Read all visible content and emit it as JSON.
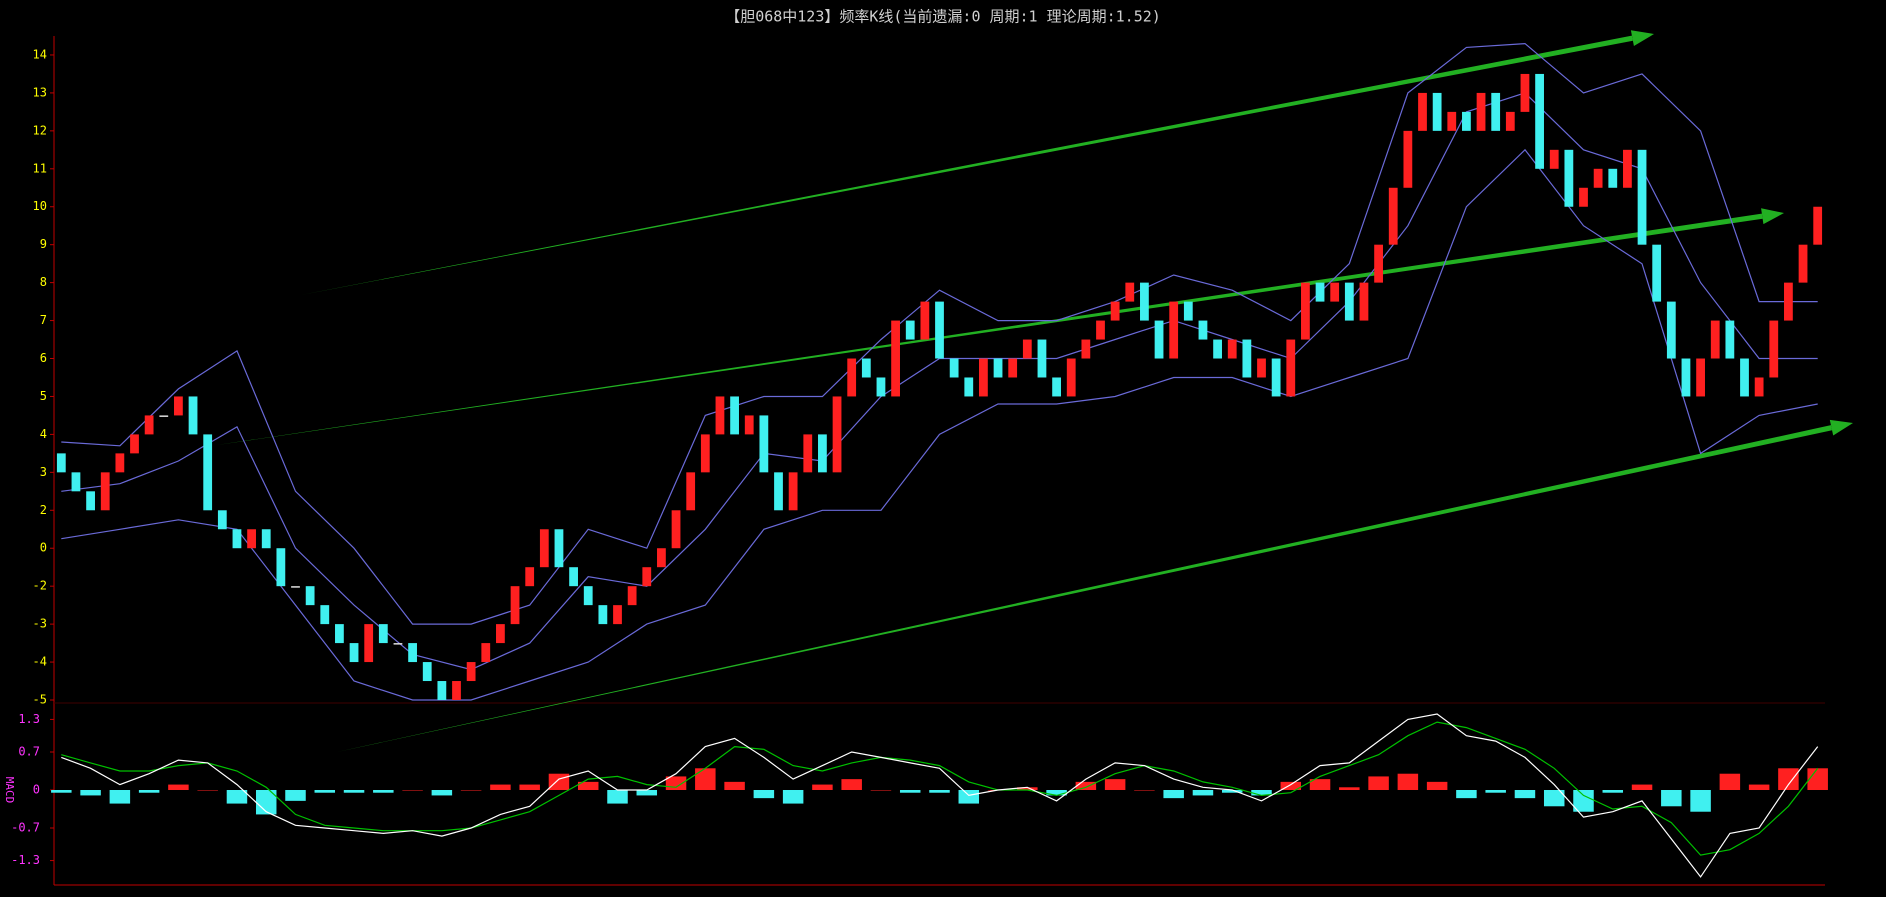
{
  "chart_data": [
    {
      "type": "candlestick",
      "title": "【胆068中123】频率K线(当前遗漏:0 周期:1 理论周期:1.52)",
      "open": [
        3.5,
        3,
        2.5,
        2,
        3,
        3.5,
        4,
        4.5,
        4.5,
        5,
        4,
        2,
        1,
        0,
        1,
        0,
        -2,
        -2,
        -2.5,
        -3,
        -3.5,
        -4,
        -3,
        -3.5,
        -3.5,
        -4,
        -4.5,
        -5,
        -4.5,
        -4,
        -3.5,
        -3,
        -2,
        -1,
        1,
        -1,
        -2,
        -2.5,
        -3,
        -2.5,
        -2,
        -1,
        0,
        2,
        3,
        4,
        5,
        4,
        4.5,
        3,
        2,
        3,
        4,
        3,
        5,
        6,
        5.5,
        5,
        7,
        6.5,
        7.5,
        6,
        5.5,
        5,
        6,
        5.5,
        6,
        6.5,
        5.5,
        5,
        6,
        6.5,
        7,
        7.5,
        8,
        7,
        6,
        7.5,
        7,
        6.5,
        6,
        6.5,
        5.5,
        6,
        5,
        6.5,
        8,
        7.5,
        8,
        7,
        8,
        9,
        10.5,
        12,
        13,
        12,
        12.5,
        12,
        13,
        12,
        12.5,
        13.5,
        11,
        11.5,
        10,
        10.5,
        11,
        10.5,
        11.5,
        9,
        7.5,
        6,
        5,
        6,
        7,
        6,
        5,
        5.5,
        7,
        8,
        9
      ],
      "close": [
        3,
        2.5,
        2,
        3,
        3.5,
        4,
        4.5,
        4.5,
        5,
        4,
        2,
        1,
        0,
        1,
        0,
        -2,
        -2,
        -2.5,
        -3,
        -3.5,
        -4,
        -3,
        -3.5,
        -3.5,
        -4,
        -4.5,
        -5,
        -4.5,
        -4,
        -3.5,
        -3,
        -2,
        -1,
        1,
        -1,
        -2,
        -2.5,
        -3,
        -2.5,
        -2,
        -1,
        0,
        2,
        3,
        4,
        5,
        4,
        4.5,
        3,
        2,
        3,
        4,
        3,
        5,
        6,
        5.5,
        5,
        7,
        6.5,
        7.5,
        6,
        5.5,
        5,
        6,
        5.5,
        6,
        6.5,
        5.5,
        5,
        6,
        6.5,
        7,
        7.5,
        8,
        7,
        6,
        7.5,
        7,
        6.5,
        6,
        6.5,
        5.5,
        6,
        5,
        6.5,
        8,
        7.5,
        8,
        7,
        8,
        9,
        10.5,
        12,
        13,
        12,
        12.5,
        12,
        13,
        12,
        12.5,
        13.5,
        11,
        11.5,
        10,
        10.5,
        11,
        10.5,
        11.5,
        9,
        7.5,
        6,
        5,
        6,
        7,
        6,
        5,
        5.5,
        7,
        8,
        9,
        10
      ],
      "up_color": "#ff2020",
      "down_color": "#40f0f0",
      "ylim": [
        -5,
        14.5
      ],
      "yticks": [
        14,
        13,
        12,
        11,
        10,
        9,
        8,
        7,
        6,
        5,
        4,
        3,
        2,
        0,
        -2,
        -3,
        -4,
        -5
      ],
      "bands": {
        "color": "#6a6ad8",
        "x": [
          0,
          4,
          8,
          12,
          16,
          20,
          24,
          28,
          32,
          36,
          40,
          44,
          48,
          52,
          56,
          60,
          64,
          68,
          72,
          76,
          80,
          84,
          88,
          92,
          96,
          100,
          104,
          108,
          112,
          116,
          120
        ],
        "upper": [
          3.8,
          3.7,
          5.2,
          6.2,
          2.5,
          0,
          -3,
          -3,
          -2.5,
          1,
          0,
          4.5,
          5,
          5,
          6.5,
          7.8,
          7,
          7,
          7.5,
          8.2,
          7.8,
          7,
          8.5,
          13,
          14.2,
          14.3,
          13,
          13.5,
          12,
          7.5,
          7.5
        ],
        "middle": [
          2.5,
          2.7,
          3.3,
          4.2,
          0,
          -2.5,
          -3.8,
          -4.2,
          -3.5,
          -1.5,
          -2,
          1,
          3.5,
          3.3,
          5,
          6,
          6,
          6,
          6.5,
          7,
          6.5,
          6,
          7.5,
          9.5,
          12.5,
          13,
          11.5,
          11,
          8,
          6,
          6
        ],
        "lower": [
          0.5,
          1,
          1.5,
          1,
          -2.5,
          -4.5,
          -5,
          -5,
          -4.5,
          -4,
          -3,
          -2.5,
          1,
          2,
          2,
          4,
          4.8,
          4.8,
          5,
          5.5,
          5.5,
          5,
          5.5,
          6,
          10,
          11.5,
          9.5,
          8.5,
          3.5,
          4.5,
          4.8
        ]
      }
    },
    {
      "type": "macd",
      "label": "MACD",
      "x": [
        0,
        2,
        4,
        6,
        8,
        10,
        12,
        14,
        16,
        18,
        20,
        22,
        24,
        26,
        28,
        30,
        32,
        34,
        36,
        38,
        40,
        42,
        44,
        46,
        48,
        50,
        52,
        54,
        56,
        58,
        60,
        62,
        64,
        66,
        68,
        70,
        72,
        74,
        76,
        78,
        80,
        82,
        84,
        86,
        88,
        90,
        92,
        94,
        96,
        98,
        100,
        102,
        104,
        106,
        108,
        110,
        112,
        114,
        116,
        118,
        120
      ],
      "dif": [
        0.6,
        0.4,
        0.1,
        0.3,
        0.55,
        0.5,
        0.1,
        -0.4,
        -0.65,
        -0.7,
        -0.75,
        -0.8,
        -0.75,
        -0.85,
        -0.7,
        -0.45,
        -0.3,
        0.2,
        0.35,
        0,
        0,
        0.3,
        0.8,
        0.95,
        0.6,
        0.2,
        0.45,
        0.7,
        0.6,
        0.5,
        0.4,
        -0.1,
        0,
        0.05,
        -0.2,
        0.2,
        0.5,
        0.45,
        0.2,
        0.05,
        0,
        -0.2,
        0.1,
        0.45,
        0.5,
        0.9,
        1.3,
        1.4,
        1,
        0.9,
        0.6,
        0.1,
        -0.5,
        -0.4,
        -0.2,
        -0.9,
        -1.6,
        -0.8,
        -0.7,
        0.1,
        0.8
      ],
      "dea": [
        0.65,
        0.5,
        0.35,
        0.35,
        0.45,
        0.5,
        0.35,
        0.05,
        -0.45,
        -0.65,
        -0.7,
        -0.75,
        -0.75,
        -0.75,
        -0.7,
        -0.55,
        -0.4,
        -0.1,
        0.2,
        0.25,
        0.1,
        0.05,
        0.4,
        0.8,
        0.75,
        0.45,
        0.35,
        0.5,
        0.6,
        0.55,
        0.45,
        0.15,
        0,
        0,
        -0.1,
        0.05,
        0.3,
        0.45,
        0.35,
        0.15,
        0.05,
        -0.1,
        -0.05,
        0.25,
        0.45,
        0.65,
        1,
        1.25,
        1.15,
        0.95,
        0.75,
        0.4,
        -0.1,
        -0.35,
        -0.3,
        -0.6,
        -1.2,
        -1.1,
        -0.8,
        -0.3,
        0.4
      ],
      "hist": [
        -0.05,
        -0.1,
        -0.25,
        -0.05,
        0.1,
        0,
        -0.25,
        -0.45,
        -0.2,
        -0.05,
        -0.05,
        -0.05,
        0,
        -0.1,
        0,
        0.1,
        0.1,
        0.3,
        0.15,
        -0.25,
        -0.1,
        0.25,
        0.4,
        0.15,
        -0.15,
        -0.25,
        0.1,
        0.2,
        0,
        -0.05,
        -0.05,
        -0.25,
        0,
        0.05,
        -0.1,
        0.15,
        0.2,
        0,
        -0.15,
        -0.1,
        -0.05,
        -0.1,
        0.15,
        0.2,
        0.05,
        0.25,
        0.3,
        0.15,
        -0.15,
        -0.05,
        -0.15,
        -0.3,
        -0.4,
        -0.05,
        0.1,
        -0.3,
        -0.4,
        0.3,
        0.1,
        0.4,
        0.4
      ],
      "dif_color": "#ffffff",
      "dea_color": "#00c000",
      "up_color": "#ff2020",
      "down_color": "#40f0f0",
      "ylim": [
        -1.75,
        1.75
      ],
      "yticks": [
        1.3,
        0.7,
        0,
        -0.7,
        -1.3
      ]
    }
  ]
}
